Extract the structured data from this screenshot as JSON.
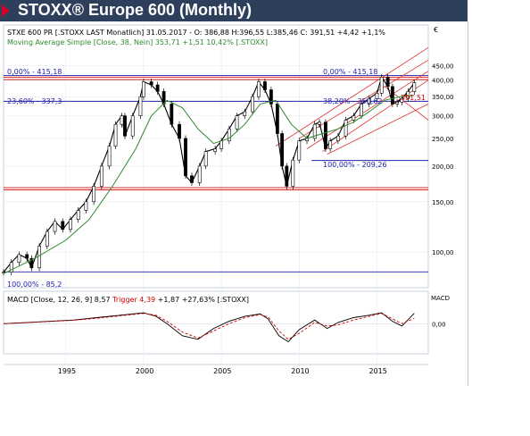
{
  "title": "STOXX® Europe 600 (Monthly)",
  "colors": {
    "title_bg": "#2e3f5c",
    "title_arrow": "#d4002a",
    "price": "#000000",
    "sma": "#2e8b2e",
    "fib": "#2222aa",
    "support_resistance": "#d40000",
    "channel": "#e03030",
    "macd": "#000000",
    "trigger": "#d40000"
  },
  "header": {
    "line1": "STXE 600 PR [.STOXX LAST Monatlich] 31.05.2017 - O: 386,88 H:396,55 L:385,46 C: 391,51 +4,42 +1,1%",
    "line2": "Moving Average Simple [Close, 38, Nein] 353,71 +1,51 10,42% [.STOXX]"
  },
  "macd_header": {
    "prefix": "MACD [Close, 12, 26, 9] 8,57 ",
    "trigger": "Trigger 4,39",
    "suffix": " +1,87 +27,63% [.STOXX]"
  },
  "annotations": {
    "fib_0": "0,00% - 415,18",
    "fib_236": "23,60% - 337,3",
    "fib_100_long": "100,00% - 85,2",
    "fib_0_right": "0,00% - 415,18",
    "fib_382_right": "38,20% - 350,62",
    "fib_100_right": "100,00% - 209,26",
    "last_price": "391,51",
    "macd_label": "MACD",
    "macd_zero": "0,00",
    "corner": "€"
  },
  "chart_data": [
    {
      "type": "line",
      "scale": "log",
      "ylim": [
        75,
        510
      ],
      "xlim": [
        1991.0,
        2018.3
      ],
      "yticks": [
        {
          "value": 450,
          "label": "450,00"
        },
        {
          "value": 400,
          "label": "400,00"
        },
        {
          "value": 350,
          "label": "350,00"
        },
        {
          "value": 300,
          "label": "300,00"
        },
        {
          "value": 250,
          "label": "250,00"
        },
        {
          "value": 200,
          "label": "200,00"
        },
        {
          "value": 150,
          "label": "150,00"
        },
        {
          "value": 100,
          "label": "100,00"
        }
      ],
      "xticks": [
        {
          "value": 1995,
          "label": "1995"
        },
        {
          "value": 2000,
          "label": "2000"
        },
        {
          "value": 2005,
          "label": "2005"
        },
        {
          "value": 2010,
          "label": "2010"
        },
        {
          "value": 2015,
          "label": "2015"
        }
      ],
      "series": [
        {
          "name": "STXE 600 PR",
          "style": "candle-close",
          "x": [
            1991.0,
            1991.5,
            1992.0,
            1992.5,
            1992.8,
            1993.3,
            1993.8,
            1994.3,
            1994.8,
            1995.3,
            1995.8,
            1996.3,
            1996.8,
            1997.3,
            1997.8,
            1998.2,
            1998.6,
            1998.8,
            1999.3,
            1999.8,
            2000.0,
            2000.5,
            2000.9,
            2001.3,
            2001.8,
            2002.3,
            2002.7,
            2003.1,
            2003.6,
            2004.0,
            2004.6,
            2005.0,
            2005.5,
            2006.0,
            2006.5,
            2007.0,
            2007.4,
            2007.8,
            2008.2,
            2008.6,
            2008.9,
            2009.2,
            2009.6,
            2010.0,
            2010.5,
            2011.0,
            2011.3,
            2011.7,
            2012.0,
            2012.5,
            2013.0,
            2013.5,
            2014.0,
            2014.5,
            2015.0,
            2015.3,
            2015.7,
            2016.0,
            2016.3,
            2016.6,
            2017.0,
            2017.4
          ],
          "y": [
            85,
            92,
            98,
            95,
            88,
            105,
            118,
            128,
            120,
            130,
            140,
            150,
            170,
            200,
            235,
            280,
            300,
            255,
            300,
            350,
            395,
            385,
            365,
            330,
            280,
            250,
            185,
            175,
            200,
            225,
            230,
            245,
            270,
            300,
            310,
            350,
            395,
            370,
            330,
            260,
            200,
            170,
            210,
            245,
            250,
            280,
            285,
            230,
            245,
            255,
            290,
            300,
            330,
            345,
            360,
            410,
            380,
            330,
            335,
            345,
            365,
            391.51
          ]
        },
        {
          "name": "Moving Average Simple [Close, 38]",
          "style": "line",
          "x": [
            1991.0,
            1993.0,
            1995.0,
            1996.5,
            1998.0,
            1999.5,
            2000.5,
            2001.5,
            2002.5,
            2003.5,
            2004.5,
            2005.5,
            2006.5,
            2007.5,
            2008.5,
            2009.5,
            2010.5,
            2011.5,
            2012.5,
            2013.5,
            2014.5,
            2015.5,
            2016.5,
            2017.4
          ],
          "y": [
            84,
            95,
            110,
            130,
            170,
            230,
            300,
            340,
            320,
            270,
            240,
            250,
            280,
            330,
            340,
            280,
            250,
            260,
            270,
            285,
            310,
            340,
            350,
            353.71
          ]
        }
      ],
      "hlines": [
        {
          "name": "fib-0",
          "y": 415.18,
          "color": "fib"
        },
        {
          "name": "fib-23.6",
          "y": 337.3,
          "color": "fib"
        },
        {
          "name": "fib-100",
          "y": 85.2,
          "color": "fib"
        },
        {
          "name": "resistance-1",
          "y": 410,
          "color": "support_resistance"
        },
        {
          "name": "resistance-2",
          "y": 402,
          "color": "support_resistance"
        },
        {
          "name": "support-low",
          "y": 165,
          "color": "support_resistance"
        },
        {
          "name": "support-low-2",
          "y": 168,
          "color": "support_resistance"
        },
        {
          "name": "fib-100-right",
          "y": 209.26,
          "color": "fib",
          "from": 2010.8
        }
      ],
      "trendlines": [
        {
          "name": "channel-upper-1",
          "x": [
            2008.5,
            2018.3
          ],
          "y": [
            235,
            520
          ]
        },
        {
          "name": "channel-upper-2",
          "x": [
            2010.0,
            2018.3
          ],
          "y": [
            250,
            470
          ]
        },
        {
          "name": "channel-mid",
          "x": [
            2010.5,
            2018.3
          ],
          "y": [
            230,
            430
          ]
        },
        {
          "name": "channel-lower",
          "x": [
            2011.5,
            2018.3
          ],
          "y": [
            225,
            400
          ]
        },
        {
          "name": "channel-fan-1",
          "x": [
            2011.8,
            2018.3
          ],
          "y": [
            220,
            330
          ]
        },
        {
          "name": "channel-fan-2",
          "x": [
            2015.5,
            2018.3
          ],
          "y": [
            380,
            290
          ]
        }
      ]
    },
    {
      "type": "line",
      "xlim": [
        1991.0,
        2018.3
      ],
      "ylim": [
        -25,
        15
      ],
      "yticks": [
        {
          "value": 0,
          "label": "0,00"
        }
      ],
      "series": [
        {
          "name": "MACD",
          "style": "line",
          "x": [
            1991.0,
            1992.5,
            1994.0,
            1995.5,
            1997.0,
            1998.5,
            2000.0,
            2000.8,
            2001.5,
            2002.5,
            2003.5,
            2004.5,
            2005.5,
            2006.5,
            2007.5,
            2008.0,
            2008.7,
            2009.3,
            2010.0,
            2011.0,
            2011.8,
            2012.5,
            2013.5,
            2014.5,
            2015.3,
            2016.0,
            2016.6,
            2017.4
          ],
          "y": [
            0,
            1,
            2,
            3,
            5,
            7,
            9,
            6,
            0,
            -10,
            -13,
            -4,
            2,
            6,
            8,
            4,
            -10,
            -15,
            -5,
            3,
            -4,
            1,
            5,
            7,
            9,
            2,
            -2,
            8.57
          ]
        },
        {
          "name": "Trigger",
          "style": "dashed",
          "x": [
            1991.0,
            1992.5,
            1994.0,
            1995.5,
            1997.0,
            1998.5,
            2000.0,
            2000.8,
            2001.5,
            2002.5,
            2003.5,
            2004.5,
            2005.5,
            2006.5,
            2007.5,
            2008.0,
            2008.7,
            2009.3,
            2010.0,
            2011.0,
            2011.8,
            2012.5,
            2013.5,
            2014.5,
            2015.3,
            2016.0,
            2016.6,
            2017.4
          ],
          "y": [
            0,
            0.8,
            1.8,
            2.8,
            4.5,
            6.5,
            8.5,
            7,
            2,
            -7,
            -12,
            -6,
            0,
            5,
            7.5,
            5.5,
            -6,
            -13,
            -8,
            1,
            -2,
            -1,
            3,
            6,
            8.5,
            4,
            0,
            4.39
          ]
        }
      ]
    }
  ]
}
